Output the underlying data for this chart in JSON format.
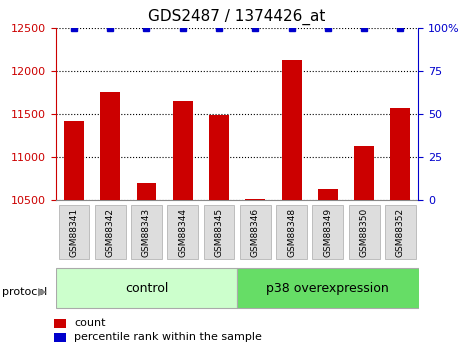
{
  "title": "GDS2487 / 1374426_at",
  "samples": [
    "GSM88341",
    "GSM88342",
    "GSM88343",
    "GSM88344",
    "GSM88345",
    "GSM88346",
    "GSM88348",
    "GSM88349",
    "GSM88350",
    "GSM88352"
  ],
  "counts": [
    11420,
    11750,
    10700,
    11650,
    11490,
    10510,
    12120,
    10630,
    11130,
    11570
  ],
  "percentile_ranks": [
    100,
    100,
    100,
    100,
    100,
    100,
    100,
    100,
    100,
    100
  ],
  "ylim_left": [
    10500,
    12500
  ],
  "ylim_right": [
    0,
    100
  ],
  "yticks_left": [
    10500,
    11000,
    11500,
    12000,
    12500
  ],
  "yticks_right": [
    0,
    25,
    50,
    75,
    100
  ],
  "bar_color": "#cc0000",
  "dot_color": "#0000cc",
  "control_samples": [
    "GSM88341",
    "GSM88342",
    "GSM88343",
    "GSM88344",
    "GSM88345"
  ],
  "p38_samples": [
    "GSM88346",
    "GSM88348",
    "GSM88349",
    "GSM88350",
    "GSM88352"
  ],
  "control_label": "control",
  "p38_label": "p38 overexpression",
  "protocol_label": "protocol",
  "legend_count": "count",
  "legend_percentile": "percentile rank within the sample",
  "control_color": "#ccffcc",
  "p38_color": "#66dd66",
  "tick_bg_color": "#dddddd",
  "grid_color": "#000000",
  "right_axis_color": "#0000cc",
  "left_axis_color": "#cc0000"
}
